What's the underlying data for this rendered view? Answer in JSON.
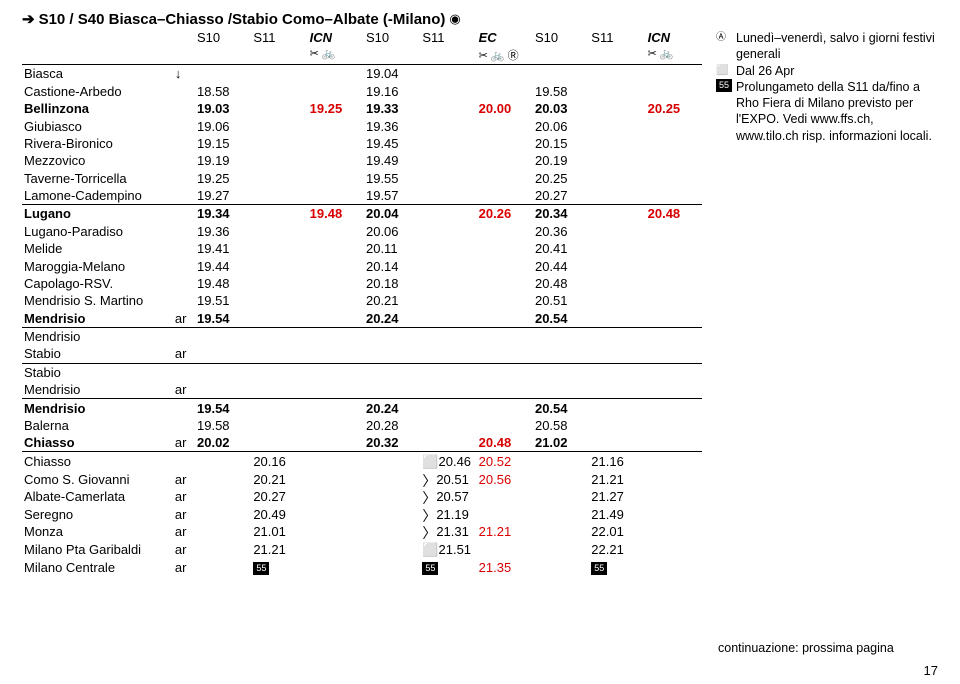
{
  "title_prefix": "➔",
  "title": "S10 / S40 Biasca–Chiasso /Stabio Como–Albate (-Milano)",
  "eye": "◉",
  "service_headers": [
    "S10",
    "S11",
    "ICN",
    "S10",
    "S11",
    "EC",
    "S10",
    "S11",
    "ICN"
  ],
  "icons_row": [
    "",
    "",
    "✂ 🚲",
    "",
    "",
    "✂ 🚲 Ⓡ",
    "",
    "",
    "✂ 🚲"
  ],
  "rows": [
    {
      "stn": "Biasca",
      "ar": "↓",
      "c": [
        "",
        "",
        "",
        "19.04",
        "",
        "",
        "",
        "",
        ""
      ],
      "rule": false
    },
    {
      "stn": "Castione-Arbedo",
      "c": [
        "18.58",
        "",
        "",
        "19.16",
        "",
        "",
        "19.58",
        "",
        ""
      ],
      "rule": false
    },
    {
      "stn": "Bellinzona",
      "bold": true,
      "c": [
        "19.03",
        "",
        "19.25",
        "19.33",
        "",
        "20.00",
        "20.03",
        "",
        "20.25"
      ],
      "rule": false,
      "red": [
        2,
        5,
        8
      ]
    },
    {
      "stn": "Giubiasco",
      "c": [
        "19.06",
        "",
        "",
        "19.36",
        "",
        "",
        "20.06",
        "",
        ""
      ],
      "rule": false
    },
    {
      "stn": "Rivera-Bironico",
      "c": [
        "19.15",
        "",
        "",
        "19.45",
        "",
        "",
        "20.15",
        "",
        ""
      ],
      "rule": false
    },
    {
      "stn": "Mezzovico",
      "c": [
        "19.19",
        "",
        "",
        "19.49",
        "",
        "",
        "20.19",
        "",
        ""
      ],
      "rule": false
    },
    {
      "stn": "Taverne-Torricella",
      "c": [
        "19.25",
        "",
        "",
        "19.55",
        "",
        "",
        "20.25",
        "",
        ""
      ],
      "rule": false
    },
    {
      "stn": "Lamone-Cadempino",
      "c": [
        "19.27",
        "",
        "",
        "19.57",
        "",
        "",
        "20.27",
        "",
        ""
      ],
      "rule": true
    },
    {
      "stn": "Lugano",
      "bold": true,
      "c": [
        "19.34",
        "",
        "19.48",
        "20.04",
        "",
        "20.26",
        "20.34",
        "",
        "20.48"
      ],
      "rule": false,
      "red": [
        2,
        5,
        8
      ]
    },
    {
      "stn": "Lugano-Paradiso",
      "c": [
        "19.36",
        "",
        "",
        "20.06",
        "",
        "",
        "20.36",
        "",
        ""
      ],
      "rule": false
    },
    {
      "stn": "Melide",
      "c": [
        "19.41",
        "",
        "",
        "20.11",
        "",
        "",
        "20.41",
        "",
        ""
      ],
      "rule": false
    },
    {
      "stn": "Maroggia-Melano",
      "c": [
        "19.44",
        "",
        "",
        "20.14",
        "",
        "",
        "20.44",
        "",
        ""
      ],
      "rule": false
    },
    {
      "stn": "Capolago-RSV.",
      "c": [
        "19.48",
        "",
        "",
        "20.18",
        "",
        "",
        "20.48",
        "",
        ""
      ],
      "rule": false
    },
    {
      "stn": "Mendrisio S. Martino",
      "c": [
        "19.51",
        "",
        "",
        "20.21",
        "",
        "",
        "20.51",
        "",
        ""
      ],
      "rule": false
    },
    {
      "stn": "Mendrisio",
      "ar": "ar",
      "bold": true,
      "c": [
        "19.54",
        "",
        "",
        "20.24",
        "",
        "",
        "20.54",
        "",
        ""
      ],
      "rule": true
    },
    {
      "stn": "Mendrisio",
      "c": [
        "",
        "",
        "",
        "",
        "",
        "",
        "",
        "",
        ""
      ],
      "rule": false
    },
    {
      "stn": "Stabio",
      "ar": "ar",
      "c": [
        "",
        "",
        "",
        "",
        "",
        "",
        "",
        "",
        ""
      ],
      "rule": true
    },
    {
      "stn": "Stabio",
      "c": [
        "",
        "",
        "",
        "",
        "",
        "",
        "",
        "",
        ""
      ],
      "rule": false
    },
    {
      "stn": "Mendrisio",
      "ar": "ar",
      "c": [
        "",
        "",
        "",
        "",
        "",
        "",
        "",
        "",
        ""
      ],
      "rule": true
    },
    {
      "stn": "Mendrisio",
      "bold": true,
      "c": [
        "19.54",
        "",
        "",
        "20.24",
        "",
        "",
        "20.54",
        "",
        ""
      ],
      "rule": false
    },
    {
      "stn": "Balerna",
      "c": [
        "19.58",
        "",
        "",
        "20.28",
        "",
        "",
        "20.58",
        "",
        ""
      ],
      "rule": false
    },
    {
      "stn": "Chiasso",
      "ar": "ar",
      "bold": true,
      "c": [
        "20.02",
        "",
        "",
        "20.32",
        "",
        "20.48",
        "21.02",
        "",
        ""
      ],
      "rule": true,
      "red": [
        5
      ]
    },
    {
      "stn": "Chiasso",
      "c": [
        "",
        "20.16",
        "",
        "",
        "⬜20.46",
        "20.52",
        "",
        "21.16",
        ""
      ],
      "rule": false,
      "red": [
        5
      ]
    },
    {
      "stn": "Como S. Giovanni",
      "ar": "ar",
      "c": [
        "",
        "20.21",
        "",
        "",
        "〉20.51",
        "20.56",
        "",
        "21.21",
        ""
      ],
      "rule": false,
      "red": [
        5
      ],
      "wave": [
        4
      ]
    },
    {
      "stn": "Albate-Camerlata",
      "ar": "ar",
      "c": [
        "",
        "20.27",
        "",
        "",
        "〉20.57",
        "",
        "",
        "21.27",
        ""
      ],
      "rule": false,
      "wave": [
        4
      ]
    },
    {
      "stn": "Seregno",
      "ar": "ar",
      "c": [
        "",
        "20.49",
        "",
        "",
        "〉21.19",
        "",
        "",
        "21.49",
        ""
      ],
      "rule": false,
      "wave": [
        4
      ]
    },
    {
      "stn": "Monza",
      "ar": "ar",
      "c": [
        "",
        "21.01",
        "",
        "",
        "〉21.31",
        "21.21",
        "",
        "22.01",
        ""
      ],
      "rule": false,
      "red": [
        5
      ],
      "wave": [
        4
      ]
    },
    {
      "stn": "Milano Pta Garibaldi",
      "ar": "ar",
      "c": [
        "",
        "21.21",
        "",
        "",
        "⬜21.51",
        "",
        "",
        "22.21",
        ""
      ],
      "rule": false
    },
    {
      "stn": "Milano Centrale",
      "ar": "ar",
      "c": [
        "",
        "⬛55",
        "",
        "",
        "⬛55",
        "21.35",
        "",
        "⬛55",
        ""
      ],
      "rule": false,
      "red": [
        5
      ],
      "box": [
        1,
        4,
        7
      ]
    }
  ],
  "notes": [
    {
      "sym": "Ⓐ",
      "text": "Lunedì–venerdì, salvo i giorni festivi generali"
    },
    {
      "sym": "⬜",
      "text": "Dal 26 Apr"
    },
    {
      "sym": "55",
      "box": true,
      "text": "Prolungameto della S11 da/fino a Rho Fiera di Milano previsto per l'EXPO. Vedi www.ffs.ch, www.tilo.ch risp. informazioni locali."
    }
  ],
  "continuation": "continuazione: prossima pagina",
  "page": "17"
}
